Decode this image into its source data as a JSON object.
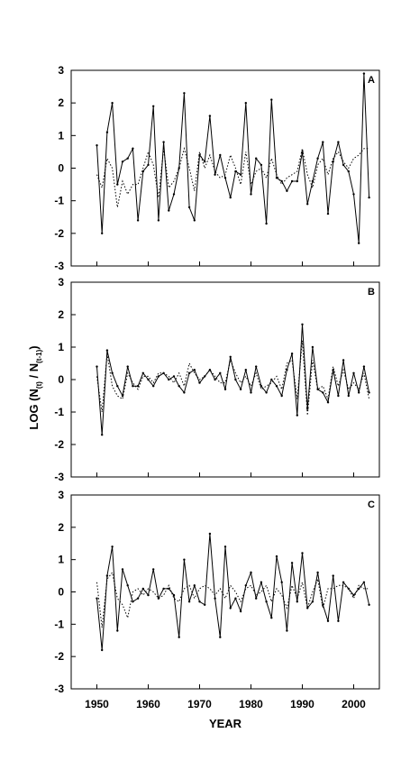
{
  "chart_data": {
    "type": "line",
    "x": [
      1950,
      1951,
      1952,
      1953,
      1954,
      1955,
      1956,
      1957,
      1958,
      1959,
      1960,
      1961,
      1962,
      1963,
      1964,
      1965,
      1966,
      1967,
      1968,
      1969,
      1970,
      1971,
      1972,
      1973,
      1974,
      1975,
      1976,
      1977,
      1978,
      1979,
      1980,
      1981,
      1982,
      1983,
      1984,
      1985,
      1986,
      1987,
      1988,
      1989,
      1990,
      1991,
      1992,
      1993,
      1994,
      1995,
      1996,
      1997,
      1998,
      1999,
      2000,
      2001,
      2002,
      2003
    ],
    "xlabel": "YEAR",
    "ylabel": "LOG (N",
    "ylabel_sub1": "(t)",
    "ylabel_mid": " / N",
    "ylabel_sub2": "(t-1)",
    "ylabel_end": ")",
    "xticks": [
      1950,
      1960,
      1970,
      1980,
      1990,
      2000
    ],
    "xlim": [
      1945,
      2005
    ],
    "ylim": [
      -3,
      3
    ],
    "yticks": [
      -3,
      -2,
      -1,
      0,
      1,
      2,
      3
    ],
    "panels": [
      {
        "label": "A",
        "series": [
          {
            "style": "solid",
            "values": [
              0.7,
              -2.0,
              1.1,
              2.0,
              -0.5,
              0.2,
              0.3,
              0.6,
              -1.6,
              -0.1,
              0.1,
              1.9,
              -1.6,
              0.8,
              -1.3,
              -0.8,
              0.0,
              2.3,
              -1.2,
              -1.6,
              0.4,
              0.2,
              1.6,
              -0.2,
              0.4,
              -0.3,
              -0.9,
              -0.1,
              -0.2,
              2.0,
              -0.8,
              0.3,
              0.1,
              -1.7,
              2.1,
              -0.3,
              -0.4,
              -0.7,
              -0.4,
              -0.4,
              0.5,
              -1.1,
              -0.4,
              0.3,
              0.8,
              -1.4,
              0.2,
              0.8,
              0.1,
              -0.1,
              -0.8,
              -2.3,
              2.9,
              -0.9
            ]
          },
          {
            "style": "dotted",
            "values": [
              -0.2,
              -0.6,
              0.3,
              0.0,
              -1.2,
              -0.4,
              -0.8,
              -0.5,
              -0.5,
              0.0,
              0.5,
              0.1,
              -0.9,
              0.6,
              -0.6,
              -0.4,
              0.0,
              0.6,
              0.0,
              -0.7,
              0.5,
              0.0,
              0.4,
              -0.1,
              -0.3,
              -0.2,
              0.4,
              0.0,
              -0.5,
              0.5,
              -0.5,
              -0.1,
              0.0,
              -0.3,
              0.3,
              -0.2,
              -0.5,
              -0.3,
              -0.2,
              -0.1,
              0.6,
              -0.2,
              -0.6,
              0.1,
              0.3,
              -0.2,
              0.3,
              0.5,
              0.2,
              0.0,
              0.3,
              0.4,
              0.6,
              0.6
            ]
          }
        ]
      },
      {
        "label": "B",
        "series": [
          {
            "style": "solid",
            "values": [
              0.4,
              -1.7,
              0.9,
              0.2,
              -0.2,
              -0.5,
              0.4,
              -0.2,
              -0.2,
              0.2,
              0.0,
              -0.2,
              0.1,
              0.2,
              0.0,
              0.1,
              -0.2,
              -0.4,
              0.2,
              0.3,
              -0.1,
              0.1,
              0.3,
              0.0,
              0.2,
              -0.3,
              0.7,
              0.0,
              -0.3,
              0.3,
              -0.4,
              0.4,
              -0.2,
              -0.4,
              0.0,
              -0.2,
              -0.5,
              0.3,
              0.8,
              -1.1,
              1.7,
              -0.9,
              1.0,
              -0.3,
              -0.4,
              -0.7,
              0.3,
              -0.5,
              0.6,
              -0.5,
              0.2,
              -0.4,
              0.4,
              -0.4
            ]
          },
          {
            "style": "dotted",
            "values": [
              0.1,
              -1.0,
              0.8,
              -0.2,
              -0.5,
              -0.6,
              0.2,
              -0.1,
              -0.3,
              0.1,
              0.1,
              -0.1,
              0.2,
              0.2,
              0.1,
              -0.1,
              0.2,
              -0.2,
              0.5,
              0.2,
              0.0,
              0.1,
              0.3,
              0.1,
              -0.1,
              -0.1,
              0.6,
              0.2,
              -0.1,
              0.1,
              -0.2,
              0.2,
              -0.3,
              -0.2,
              -0.1,
              0.1,
              -0.3,
              0.5,
              0.6,
              -0.6,
              1.2,
              -1.1,
              0.6,
              -0.3,
              -0.2,
              -0.6,
              0.4,
              -0.2,
              0.3,
              -0.3,
              -0.1,
              -0.3,
              0.2,
              -0.6
            ]
          }
        ]
      },
      {
        "label": "C",
        "series": [
          {
            "style": "solid",
            "values": [
              -0.2,
              -1.8,
              0.5,
              1.4,
              -1.2,
              0.7,
              0.2,
              -0.3,
              -0.2,
              0.1,
              -0.1,
              0.7,
              -0.2,
              0.1,
              0.1,
              -0.1,
              -1.4,
              1.0,
              -0.3,
              0.2,
              -0.3,
              -0.4,
              1.8,
              -0.2,
              -1.4,
              1.4,
              -0.5,
              -0.2,
              -0.6,
              0.2,
              0.6,
              -0.2,
              0.3,
              -0.3,
              -0.8,
              1.1,
              0.3,
              -1.2,
              0.9,
              -0.3,
              1.2,
              -0.5,
              -0.3,
              0.6,
              -0.4,
              -0.9,
              0.5,
              -0.9,
              0.3,
              0.1,
              -0.1,
              0.1,
              0.3,
              -0.4
            ]
          },
          {
            "style": "dotted",
            "values": [
              0.3,
              -1.1,
              0.4,
              0.6,
              -0.2,
              -0.4,
              -0.8,
              0.0,
              0.1,
              -0.1,
              0.1,
              0.0,
              -0.2,
              -0.1,
              0.2,
              -0.2,
              -0.3,
              0.1,
              0.2,
              -0.2,
              0.1,
              0.2,
              0.1,
              -0.1,
              0.1,
              -0.2,
              0.2,
              0.0,
              -0.3,
              0.1,
              0.2,
              -0.1,
              0.0,
              0.2,
              -0.3,
              0.1,
              -0.1,
              -0.5,
              0.2,
              -0.2,
              0.3,
              -0.5,
              0.0,
              0.4,
              -0.5,
              0.1,
              0.1,
              0.2,
              0.2,
              0.1,
              -0.2,
              0.2,
              0.1,
              0.1
            ]
          }
        ]
      }
    ]
  }
}
